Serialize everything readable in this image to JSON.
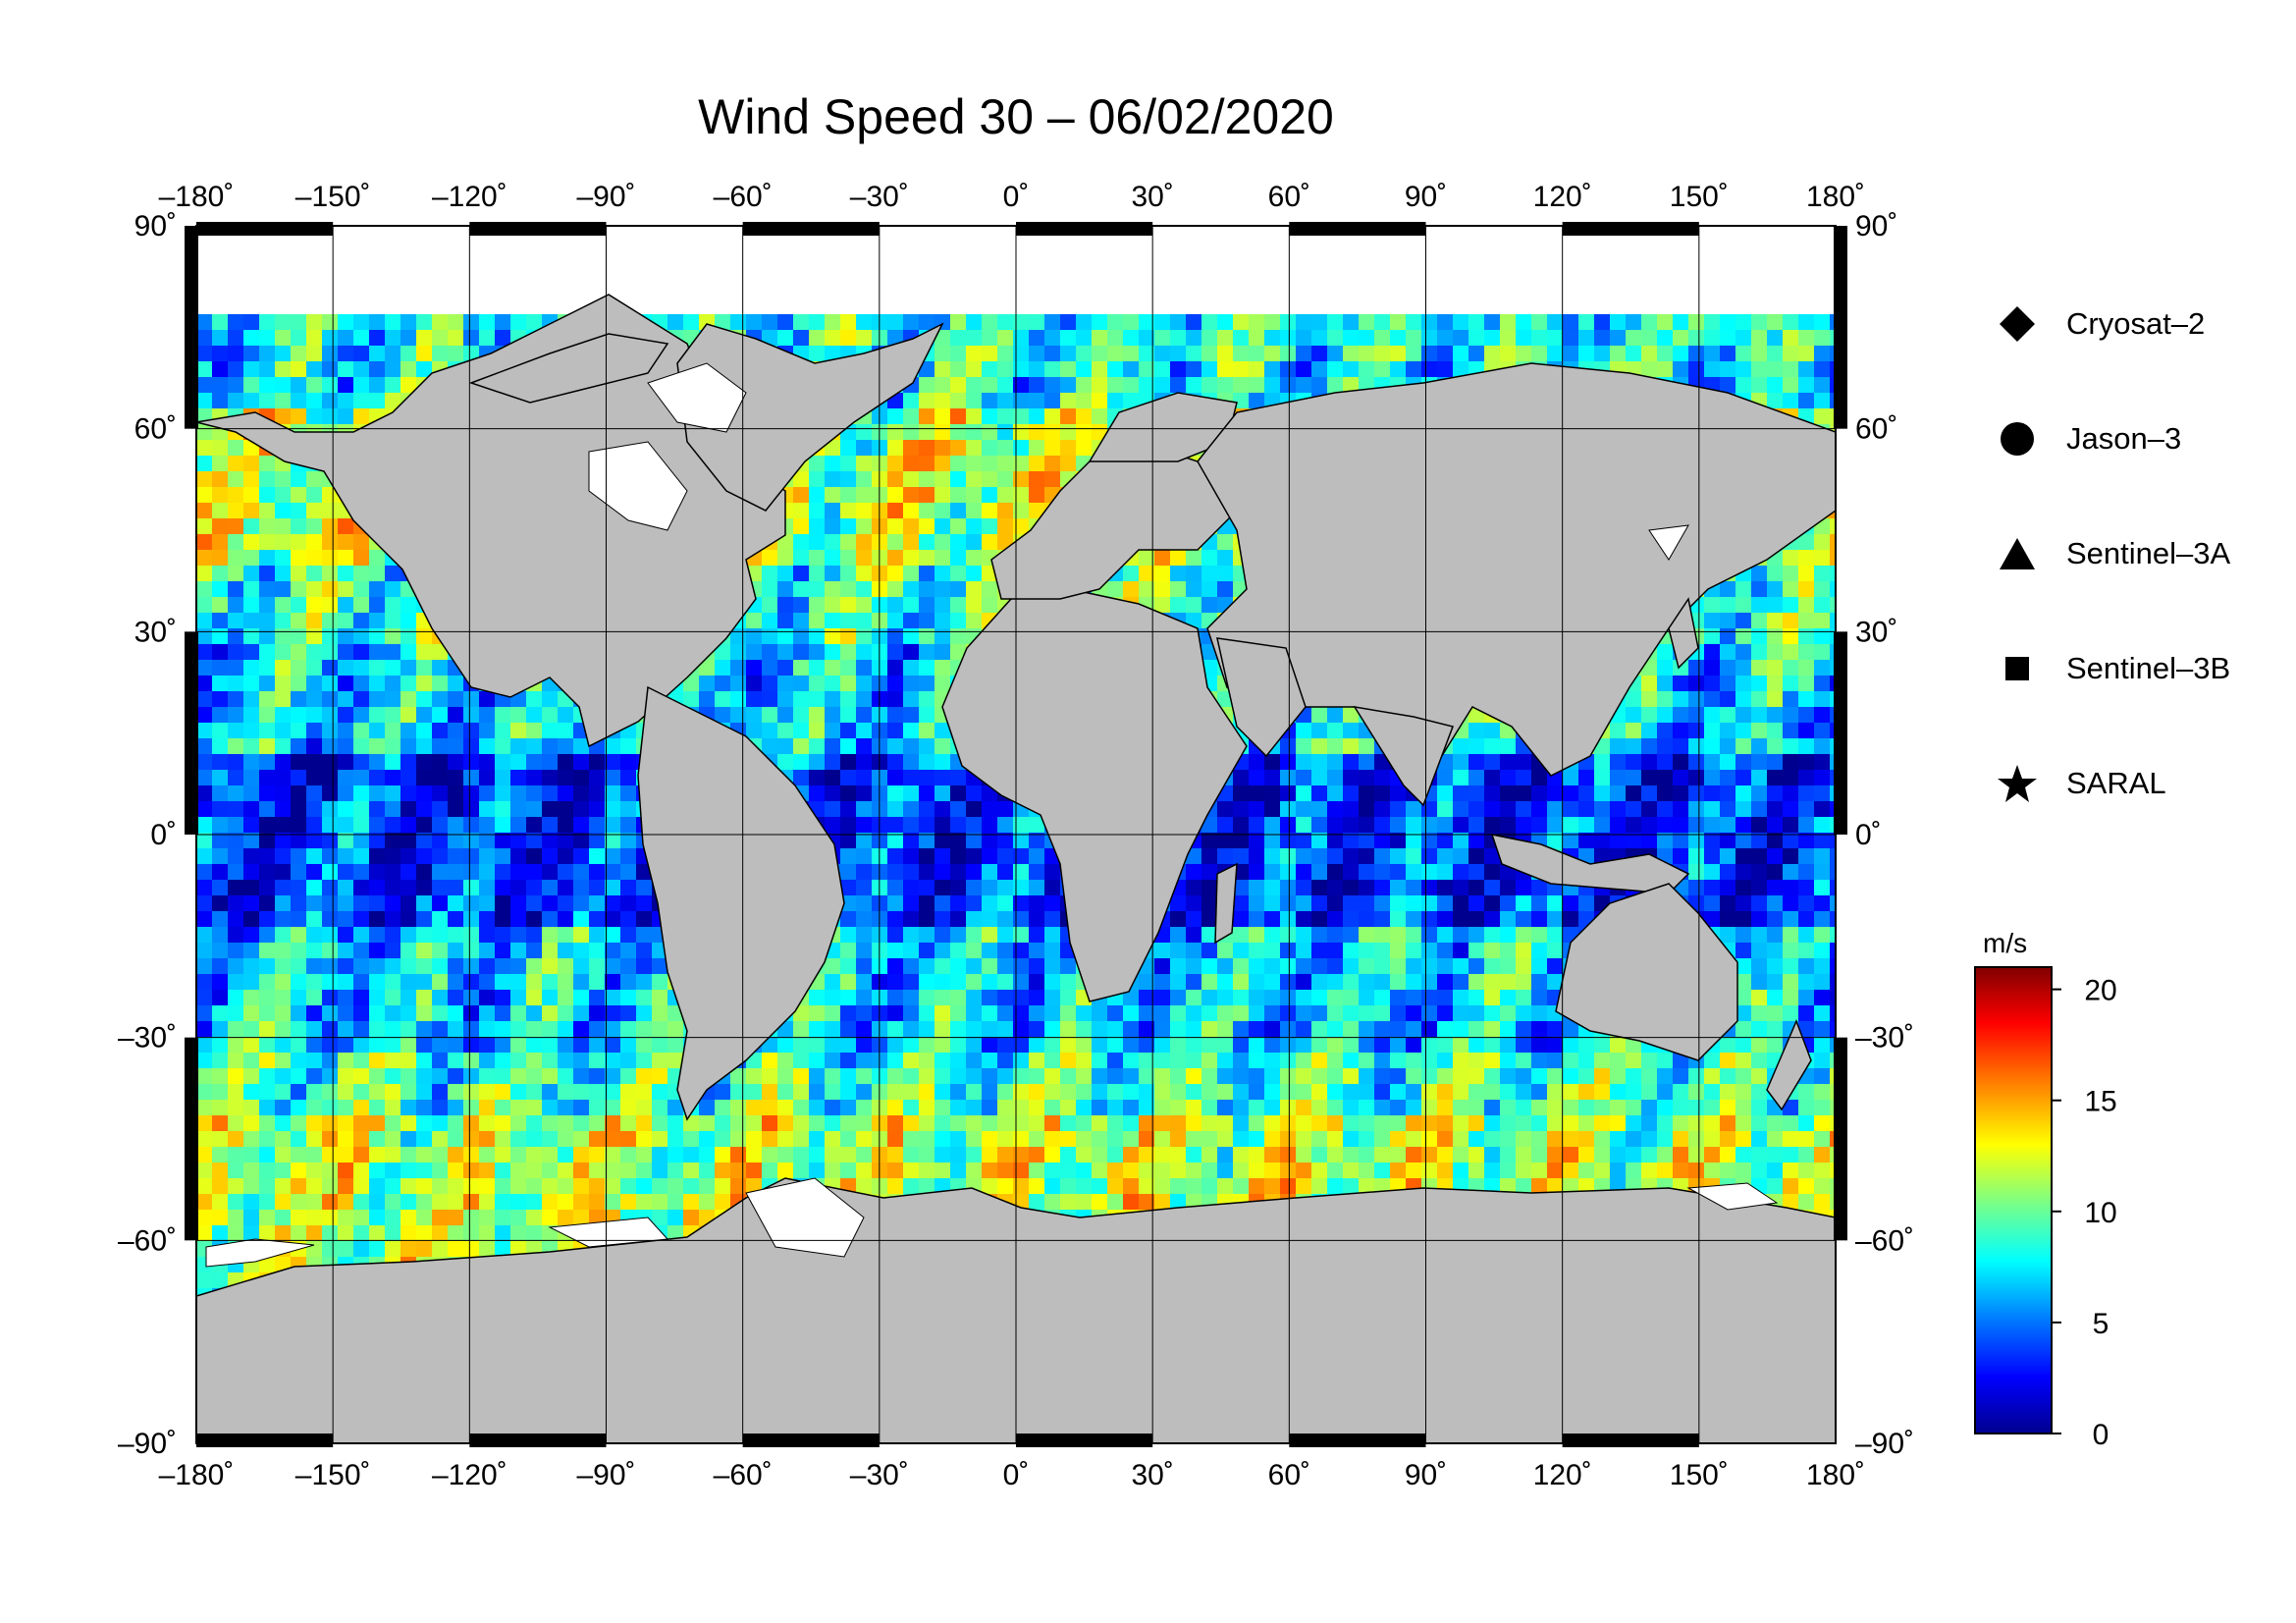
{
  "title": "Wind Speed 30 – 06/02/2020",
  "map": {
    "lon_ticks": [
      -180,
      -150,
      -120,
      -90,
      -60,
      -30,
      0,
      30,
      60,
      90,
      120,
      150,
      180
    ],
    "lat_ticks": [
      90,
      60,
      30,
      0,
      -30,
      -60,
      -90
    ],
    "lon_labels": [
      "–180˚",
      "–150˚",
      "–120˚",
      "–90˚",
      "–60˚",
      "–30˚",
      "0˚",
      "30˚",
      "60˚",
      "90˚",
      "120˚",
      "150˚",
      "180˚"
    ],
    "lat_labels": [
      "90˚",
      "60˚",
      "30˚",
      "0˚",
      "–30˚",
      "–60˚",
      "–90˚"
    ],
    "land_color": "#bdbdbd",
    "ice_color": "#ffffff"
  },
  "legend": [
    {
      "symbol": "diamond",
      "label": "Cryosat–2"
    },
    {
      "symbol": "circle",
      "label": "Jason–3"
    },
    {
      "symbol": "triangle",
      "label": "Sentinel–3A"
    },
    {
      "symbol": "square",
      "label": "Sentinel–3B"
    },
    {
      "symbol": "star",
      "label": "SARAL"
    }
  ],
  "colorbar": {
    "unit": "m/s",
    "min": 0,
    "max": 21,
    "ticks": [
      0,
      5,
      10,
      15,
      20
    ],
    "tick_labels": [
      "0",
      "5",
      "10",
      "15",
      "20"
    ],
    "colors": [
      "#00008f",
      "#0000ff",
      "#0080ff",
      "#00ffff",
      "#80ff80",
      "#ffff00",
      "#ff8000",
      "#ff0000",
      "#800000"
    ]
  }
}
